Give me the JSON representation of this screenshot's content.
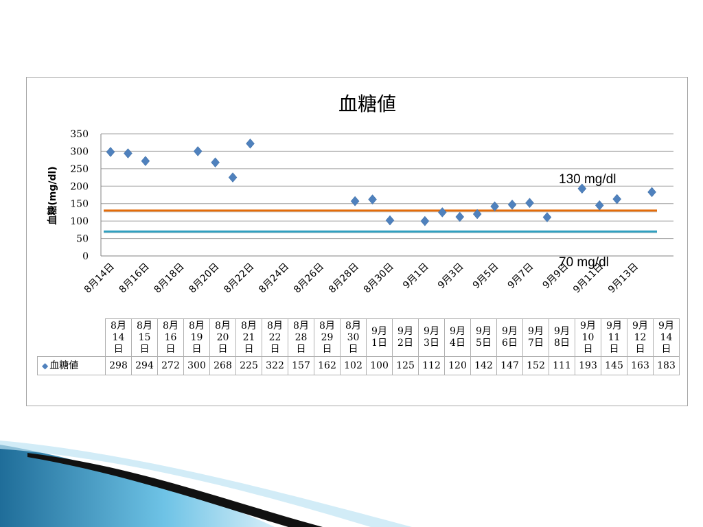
{
  "chart_data": {
    "type": "scatter",
    "title": "血糖値",
    "ylabel": "血糖(mg/dl)",
    "xlabel": "",
    "ylim": [
      0,
      350
    ],
    "yticks": [
      0,
      50,
      100,
      150,
      200,
      250,
      300,
      350
    ],
    "grid": true,
    "x_tick_labels": [
      "8月14日",
      "8月16日",
      "8月18日",
      "8月20日",
      "8月22日",
      "8月24日",
      "8月26日",
      "8月28日",
      "8月30日",
      "9月1日",
      "9月3日",
      "9月5日",
      "9月7日",
      "9月9日",
      "9月11日",
      "9月13日"
    ],
    "series": [
      {
        "name": "血糖値",
        "color": "#4f81bd",
        "marker": "diamond",
        "x": [
          "8月14日",
          "8月15日",
          "8月16日",
          "8月19日",
          "8月20日",
          "8月21日",
          "8月22日",
          "8月28日",
          "8月29日",
          "8月30日",
          "9月1日",
          "9月2日",
          "9月3日",
          "9月4日",
          "9月5日",
          "9月6日",
          "9月7日",
          "9月8日",
          "9月10日",
          "9月11日",
          "9月12日",
          "9月14日"
        ],
        "values": [
          298,
          294,
          272,
          300,
          268,
          225,
          322,
          157,
          162,
          102,
          100,
          125,
          112,
          120,
          142,
          147,
          152,
          111,
          193,
          145,
          163,
          183
        ]
      }
    ],
    "reference_lines": [
      {
        "value": 130,
        "label": "130 mg/dl",
        "color": "#e46c0a"
      },
      {
        "value": 70,
        "label": "70 mg/dl",
        "color": "#31a0c0"
      }
    ],
    "table": {
      "headers": [
        "8月\n14\n日",
        "8月\n15\n日",
        "8月\n16\n日",
        "8月\n19\n日",
        "8月\n20\n日",
        "8月\n21\n日",
        "8月\n22\n日",
        "8月\n28\n日",
        "8月\n29\n日",
        "8月\n30\n日",
        "9月\n1日",
        "9月\n2日",
        "9月\n3日",
        "9月\n4日",
        "9月\n5日",
        "9月\n6日",
        "9月\n7日",
        "9月\n8日",
        "9月\n10\n日",
        "9月\n11\n日",
        "9月\n12\n日",
        "9月\n14\n日"
      ],
      "series_label": "血糖値"
    }
  }
}
